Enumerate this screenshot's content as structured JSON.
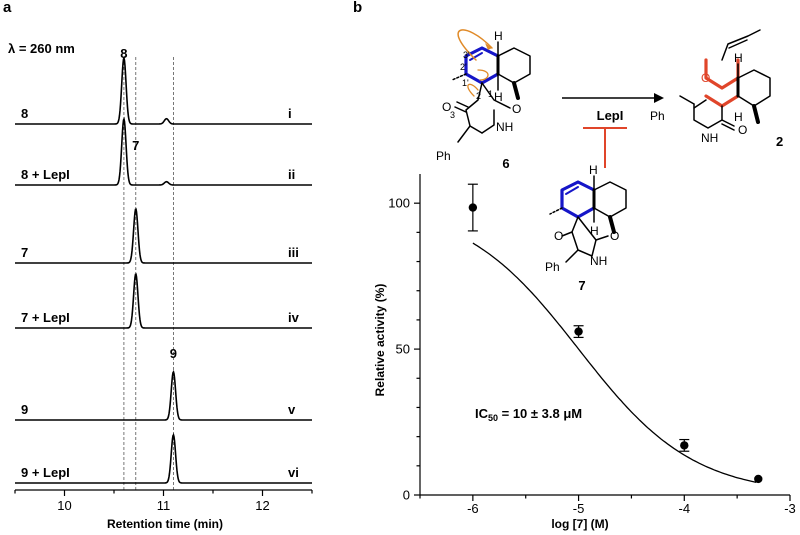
{
  "panel_a": {
    "label": "a",
    "wavelength": "λ = 260 nm",
    "peak_labels": [
      "8",
      "7",
      "9"
    ],
    "traces": [
      {
        "name": "8",
        "roman": "i",
        "peaks": [
          {
            "rt": 10.6,
            "height": 1.0
          },
          {
            "rt": 11.03,
            "height": 0.08
          }
        ]
      },
      {
        "name": "8 + LepI",
        "roman": "ii",
        "peaks": [
          {
            "rt": 10.6,
            "height": 1.0
          },
          {
            "rt": 11.03,
            "height": 0.05
          }
        ]
      },
      {
        "name": "7",
        "roman": "iii",
        "peaks": [
          {
            "rt": 10.72,
            "height": 0.82
          }
        ]
      },
      {
        "name": "7 + LepI",
        "roman": "iv",
        "peaks": [
          {
            "rt": 10.72,
            "height": 0.82
          }
        ]
      },
      {
        "name": "9",
        "roman": "v",
        "peaks": [
          {
            "rt": 11.1,
            "height": 0.73
          }
        ]
      },
      {
        "name": "9 + LepI",
        "roman": "vi",
        "peaks": [
          {
            "rt": 11.1,
            "height": 0.73
          }
        ]
      }
    ],
    "dashed_positions": [
      10.6,
      10.72,
      11.1
    ],
    "xlabel": "Retention time (min)",
    "xticks": [
      "10",
      "11",
      "12"
    ],
    "xlim": [
      9.5,
      12.5
    ]
  },
  "panel_b": {
    "label": "b",
    "scheme": {
      "enzyme": "LepI",
      "substrate_label": "6",
      "product_label": "2",
      "inhibitor_label": "7",
      "atom_labels": [
        "3'",
        "2'",
        "1'",
        "1",
        "2",
        "3"
      ],
      "groups": [
        "H",
        "H",
        "NH",
        "O",
        "O",
        "Ph"
      ]
    }
  },
  "chart_data": {
    "type": "scatter",
    "xlabel": "log [7] (M)",
    "ylabel": "Relative activity (%)",
    "xlim": [
      -6.5,
      -3
    ],
    "ylim": [
      0,
      110
    ],
    "xticks": [
      "-6",
      "-5",
      "-4",
      "-3"
    ],
    "yticks": [
      "0",
      "50",
      "100"
    ],
    "annotation": "IC50 = 10 ± 3.8 μM",
    "points": [
      {
        "x": -6.0,
        "y": 98.5,
        "err": 8
      },
      {
        "x": -5.0,
        "y": 56,
        "err": 2
      },
      {
        "x": -4.0,
        "y": 17,
        "err": 2
      },
      {
        "x": -3.3,
        "y": 5.5,
        "err": 0
      }
    ],
    "fit": {
      "model": "hill",
      "top": 100,
      "bottom": 0,
      "log_ic50": -5.0,
      "hill": 0.8
    }
  }
}
